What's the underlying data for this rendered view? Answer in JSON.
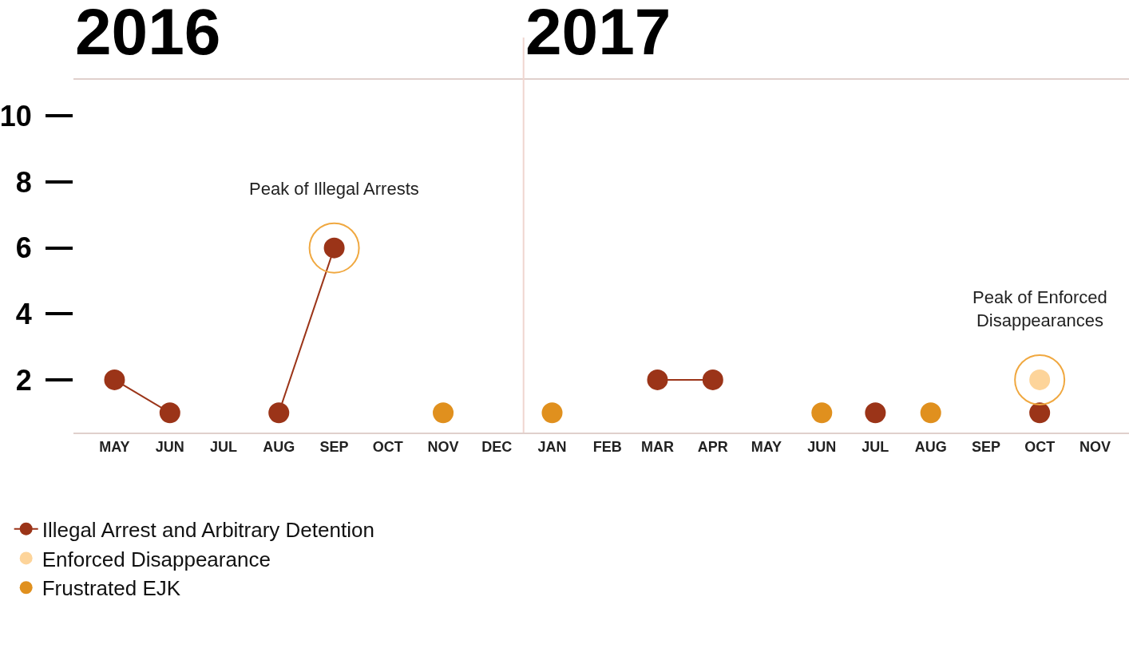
{
  "chart_data": {
    "type": "line",
    "x": [
      "2016-05",
      "2016-06",
      "2016-07",
      "2016-08",
      "2016-09",
      "2016-10",
      "2016-11",
      "2016-12",
      "2017-01",
      "2017-02",
      "2017-03",
      "2017-04",
      "2017-05",
      "2017-06",
      "2017-07",
      "2017-08",
      "2017-09",
      "2017-10"
    ],
    "xlim": [
      "2016-04-08",
      "2017-11-20"
    ],
    "xticks": [
      {
        "value": "2016-05",
        "label": "MAY"
      },
      {
        "value": "2016-06",
        "label": "JUN"
      },
      {
        "value": "2016-07",
        "label": "JUL"
      },
      {
        "value": "2016-08",
        "label": "AUG"
      },
      {
        "value": "2016-09",
        "label": "SEP"
      },
      {
        "value": "2016-10",
        "label": "OCT"
      },
      {
        "value": "2016-11",
        "label": "NOV"
      },
      {
        "value": "2016-12",
        "label": "DEC"
      },
      {
        "value": "2017-01",
        "label": "JAN"
      },
      {
        "value": "2017-02",
        "label": "FEB"
      },
      {
        "value": "2017-03",
        "label": "MAR"
      },
      {
        "value": "2017-04",
        "label": "APR"
      },
      {
        "value": "2017-05",
        "label": "MAY"
      },
      {
        "value": "2017-06",
        "label": "JUN"
      },
      {
        "value": "2017-07",
        "label": "JUL"
      },
      {
        "value": "2017-08",
        "label": "AUG"
      },
      {
        "value": "2017-09",
        "label": "SEP"
      },
      {
        "value": "2017-10",
        "label": "OCT"
      },
      {
        "value": "2017-11",
        "label": "NOV"
      }
    ],
    "ylim": [
      0.4,
      11.1
    ],
    "yticks": [
      2,
      4,
      6,
      8,
      10
    ],
    "series": [
      {
        "name": "Illegal Arrest and Arbitrary Detention",
        "color": "#9b3418",
        "values": [
          2,
          1,
          null,
          1,
          6,
          null,
          null,
          null,
          null,
          null,
          2,
          2,
          null,
          null,
          1,
          null,
          null,
          1
        ]
      },
      {
        "name": "Enforced Disappearance",
        "color": "#fdd49a",
        "type": "scatter",
        "values": [
          null,
          null,
          null,
          null,
          null,
          null,
          null,
          null,
          null,
          null,
          null,
          null,
          null,
          null,
          null,
          null,
          null,
          2
        ]
      },
      {
        "name": "Frustrated EJK",
        "color": "#e0901e",
        "type": "scatter",
        "values": [
          null,
          null,
          null,
          null,
          null,
          null,
          1,
          null,
          1,
          null,
          null,
          null,
          null,
          1,
          null,
          1,
          null,
          null
        ]
      }
    ],
    "ref_lines": [
      {
        "axis": "x",
        "value": "2016-12-16",
        "color": "#f0d6d0"
      }
    ],
    "annotations": [
      "2016",
      "2017",
      {
        "text": "Peak of Illegal Arrests",
        "x": "2016-09",
        "y": 6
      },
      {
        "text": "Peak of Enforced Disappearances",
        "x": "2017-10",
        "y": 2
      }
    ],
    "marker": "circle",
    "legend": "bottom left"
  }
}
